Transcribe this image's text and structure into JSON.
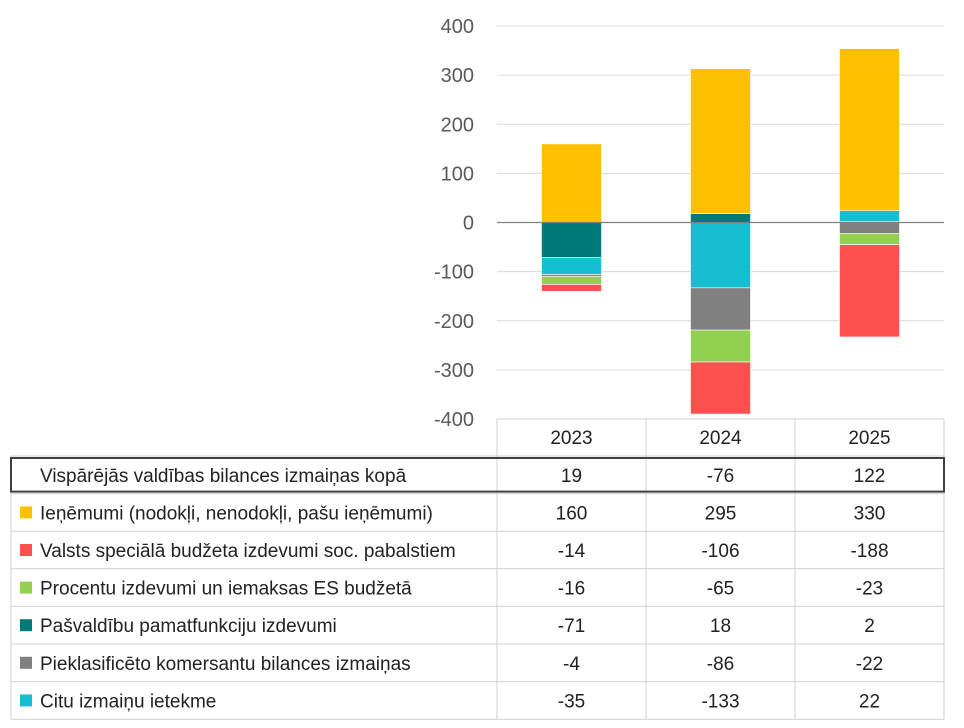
{
  "chart_data": {
    "type": "bar",
    "stacked": true,
    "categories": [
      "2023",
      "2024",
      "2025"
    ],
    "ylim": [
      -400,
      400
    ],
    "yticks": [
      400,
      300,
      200,
      100,
      0,
      -100,
      -200,
      -300,
      -400
    ],
    "grid": true,
    "total_row": {
      "label": "Vispārējās valdības bilances izmaiņas kopā",
      "values": [
        19,
        -76,
        122
      ]
    },
    "series": [
      {
        "name": "Ieņēmumi (nodokļi, nenodokļi, pašu ieņēmumi)",
        "color": "#FFC000",
        "values": [
          160,
          295,
          330
        ]
      },
      {
        "name": "Valsts speciālā budžeta izdevumi soc. pabalstiem",
        "color": "#FF5050",
        "values": [
          -14,
          -106,
          -188
        ]
      },
      {
        "name": "Procentu izdevumi un iemaksas ES budžetā",
        "color": "#92D050",
        "values": [
          -16,
          -65,
          -23
        ]
      },
      {
        "name": "Pašvaldību pamatfunkciju izdevumi",
        "color": "#007A78",
        "values": [
          -71,
          18,
          2
        ]
      },
      {
        "name": "Pieklasificēto komersantu bilances izmaiņas",
        "color": "#808080",
        "values": [
          -4,
          -86,
          -22
        ]
      },
      {
        "name": "Citu izmaiņu ietekme",
        "color": "#17BECF",
        "values": [
          -35,
          -133,
          22
        ]
      }
    ]
  }
}
